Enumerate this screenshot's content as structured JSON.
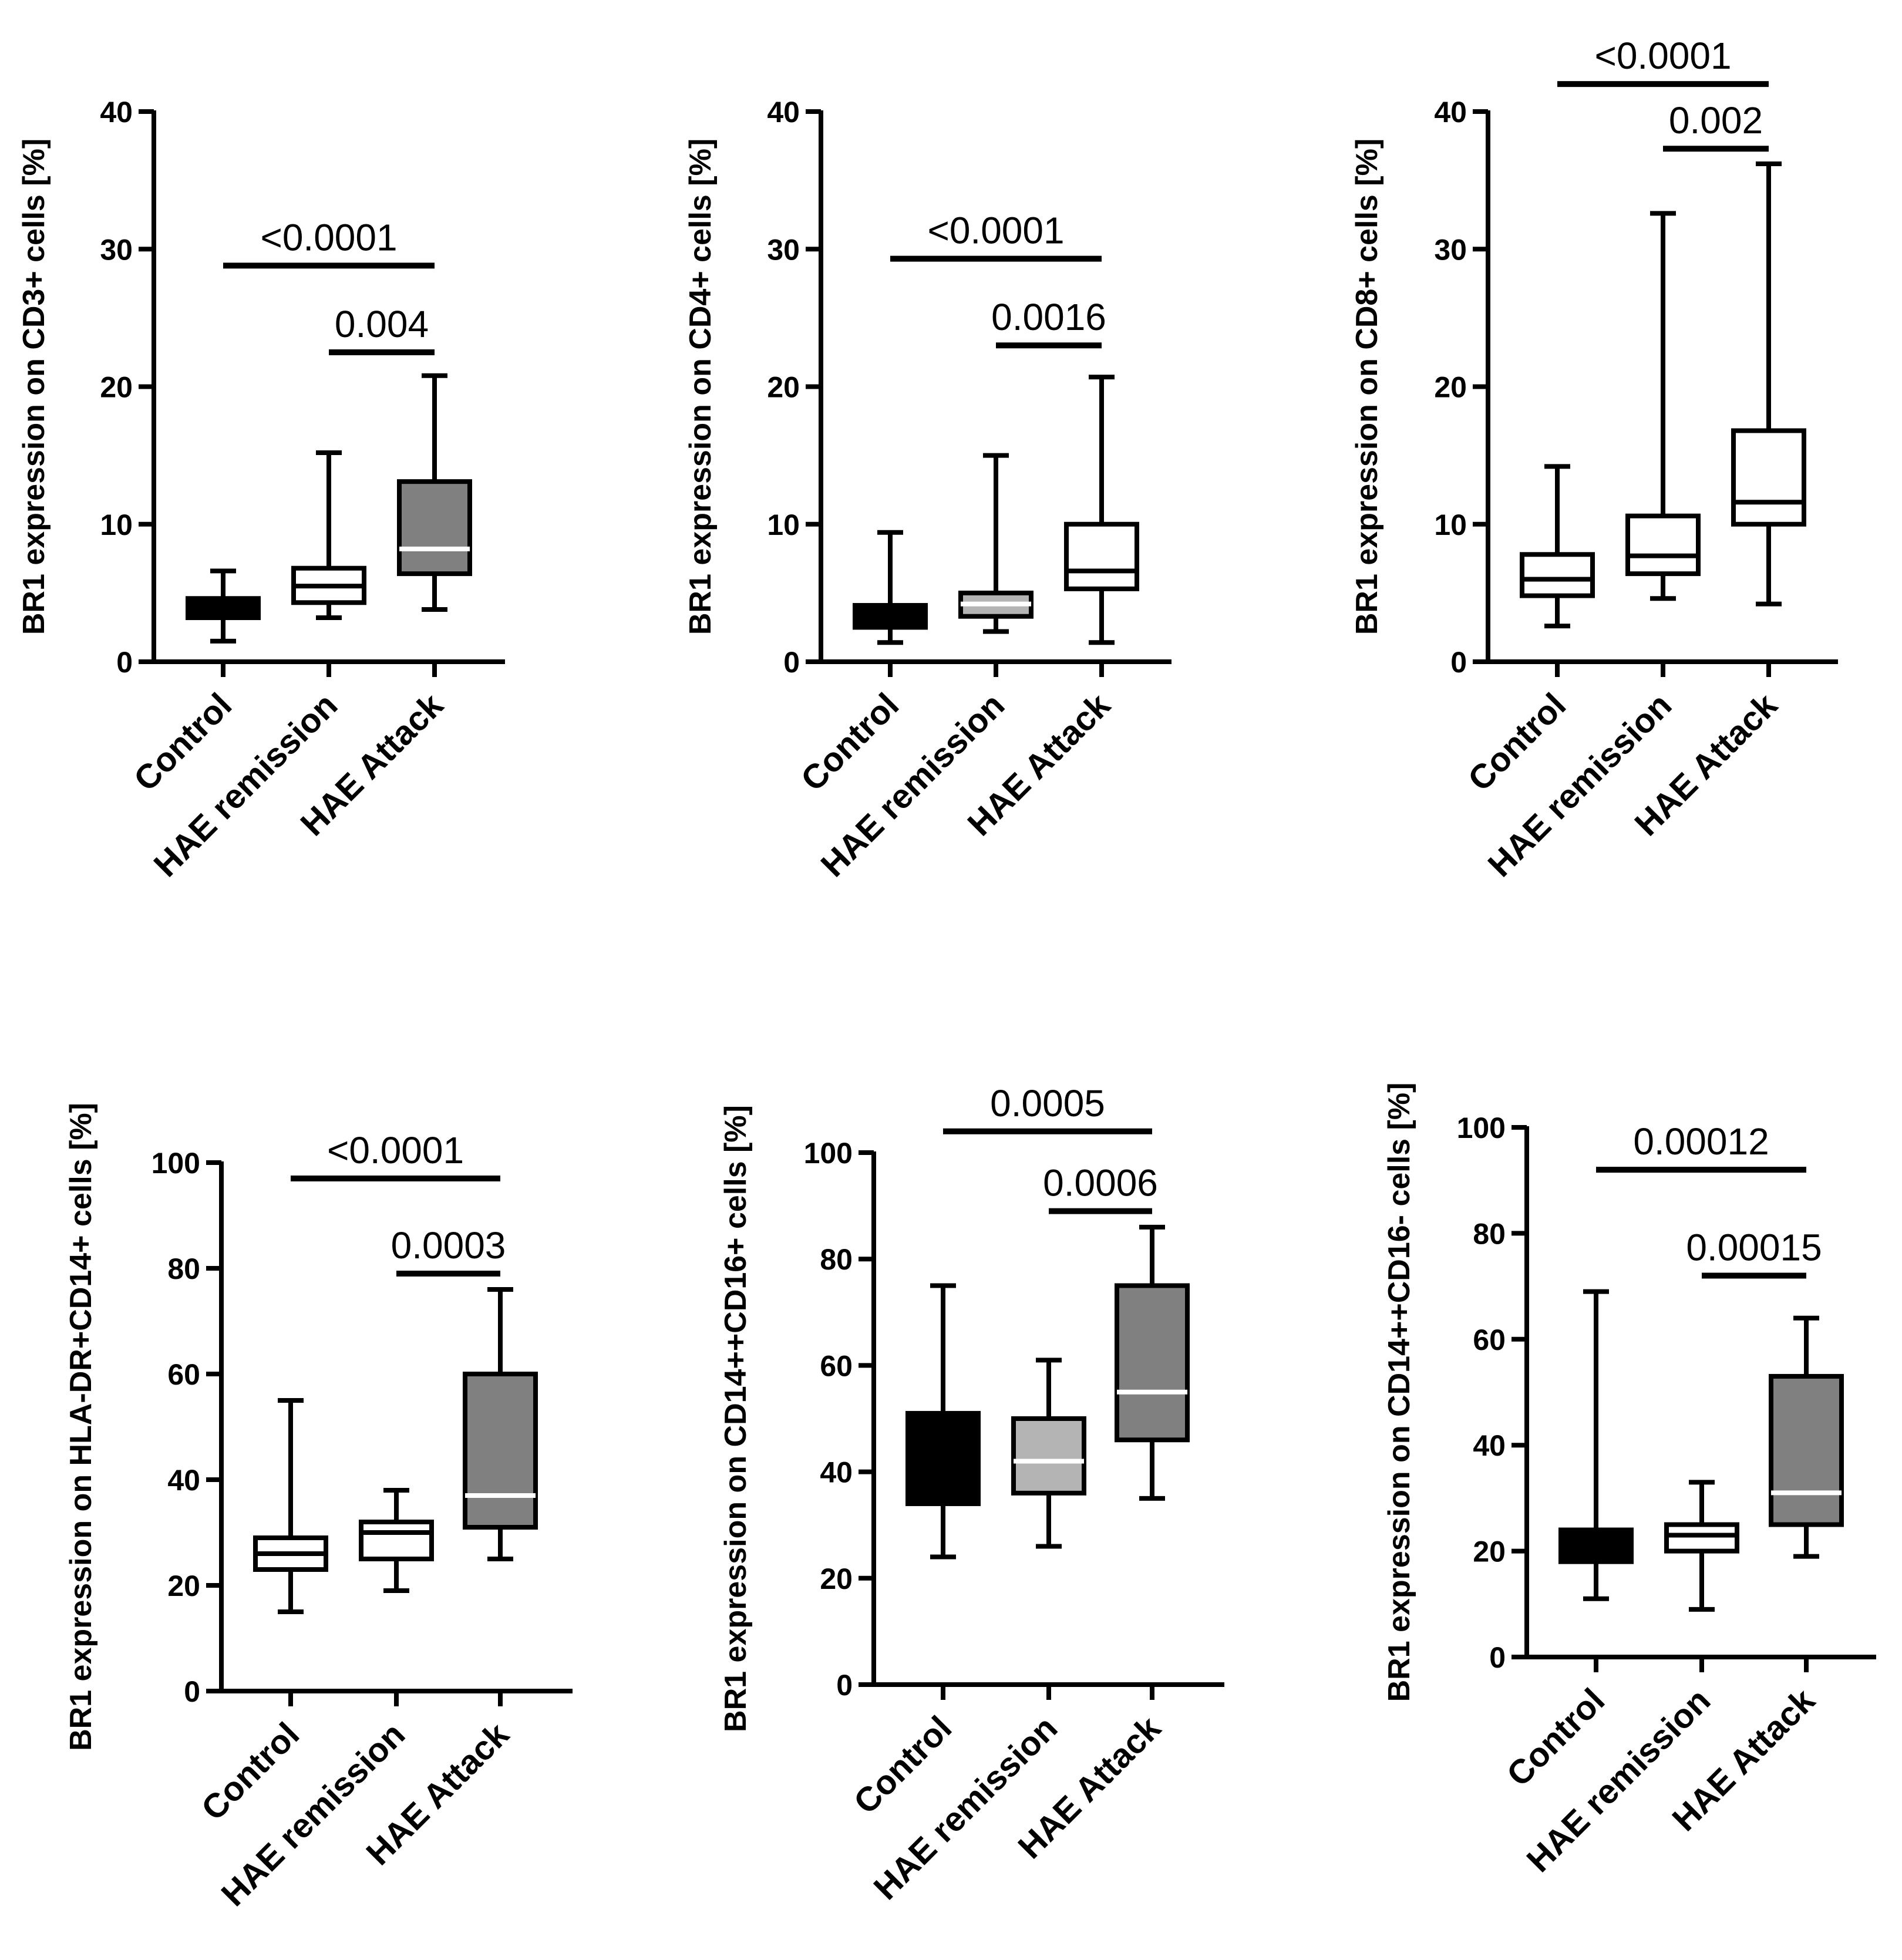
{
  "figure": {
    "colors": {
      "black": "#000000",
      "dark_grey": "#808080",
      "light_grey": "#b4b4b4",
      "white": "#ffffff"
    },
    "shared_categories": [
      "Control",
      "HAE remission",
      "HAE Attack"
    ]
  },
  "chart_data": [
    {
      "type": "boxplot",
      "ylabel": "BR1 expression on CD3+ cells [%]",
      "ylim": [
        0,
        40
      ],
      "yticks": [
        "0",
        "10",
        "20",
        "30",
        "40"
      ],
      "categories": [
        "Control",
        "HAE remission",
        "HAE Attack"
      ],
      "boxes": [
        {
          "min": 1.5,
          "q1": 3.2,
          "median": 3.8,
          "q3": 4.6,
          "max": 6.6,
          "fill": "black"
        },
        {
          "min": 3.2,
          "q1": 4.3,
          "median": 5.5,
          "q3": 6.8,
          "max": 15.2,
          "fill": "white"
        },
        {
          "min": 3.8,
          "q1": 6.4,
          "median": 8.2,
          "q3": 13.1,
          "max": 20.8,
          "fill": "dark_grey"
        }
      ],
      "comparisons": [
        {
          "from": 0,
          "to": 2,
          "label": "<0.0001",
          "y": 28.8
        },
        {
          "from": 1,
          "to": 2,
          "label": "0.004",
          "y": 22.5
        }
      ]
    },
    {
      "type": "boxplot",
      "ylabel": "BR1 expression on CD4+ cells [%]",
      "ylim": [
        0,
        40
      ],
      "yticks": [
        "0",
        "10",
        "20",
        "30",
        "40"
      ],
      "categories": [
        "Control",
        "HAE remission",
        "HAE Attack"
      ],
      "boxes": [
        {
          "min": 1.4,
          "q1": 2.5,
          "median": 3.3,
          "q3": 4.1,
          "max": 9.4,
          "fill": "black"
        },
        {
          "min": 2.2,
          "q1": 3.3,
          "median": 4.2,
          "q3": 5.0,
          "max": 15.0,
          "fill": "light_grey"
        },
        {
          "min": 1.4,
          "q1": 5.3,
          "median": 6.6,
          "q3": 10.0,
          "max": 20.7,
          "fill": "white"
        }
      ],
      "comparisons": [
        {
          "from": 0,
          "to": 2,
          "label": "<0.0001",
          "y": 29.3
        },
        {
          "from": 1,
          "to": 2,
          "label": "0.0016",
          "y": 23.0
        }
      ]
    },
    {
      "type": "boxplot",
      "ylabel": "BR1 expression on CD8+ cells [%]",
      "ylim": [
        0,
        40
      ],
      "yticks": [
        "0",
        "10",
        "20",
        "30",
        "40"
      ],
      "categories": [
        "Control",
        "HAE remission",
        "HAE Attack"
      ],
      "boxes": [
        {
          "min": 2.6,
          "q1": 4.8,
          "median": 6.0,
          "q3": 7.8,
          "max": 14.2,
          "fill": "white"
        },
        {
          "min": 4.6,
          "q1": 6.4,
          "median": 7.7,
          "q3": 10.6,
          "max": 32.6,
          "fill": "white"
        },
        {
          "min": 4.2,
          "q1": 10.0,
          "median": 11.6,
          "q3": 16.8,
          "max": 36.2,
          "fill": "white"
        }
      ],
      "comparisons": [
        {
          "from": 0,
          "to": 2,
          "label": "<0.0001",
          "y": 42.0
        },
        {
          "from": 1,
          "to": 2,
          "label": "0.002",
          "y": 37.3
        }
      ]
    },
    {
      "type": "boxplot",
      "ylabel": "BR1 expression on HLA-DR+CD14+ cells [%]",
      "ylim": [
        0,
        100
      ],
      "yticks": [
        "0",
        "20",
        "40",
        "60",
        "80",
        "100"
      ],
      "categories": [
        "Control",
        "HAE remission",
        "HAE Attack"
      ],
      "boxes": [
        {
          "min": 15,
          "q1": 23,
          "median": 26,
          "q3": 29,
          "max": 55,
          "fill": "white"
        },
        {
          "min": 19,
          "q1": 25,
          "median": 30,
          "q3": 32,
          "max": 38,
          "fill": "white"
        },
        {
          "min": 25,
          "q1": 31,
          "median": 37,
          "q3": 60,
          "max": 76,
          "fill": "dark_grey"
        }
      ],
      "comparisons": [
        {
          "from": 0,
          "to": 2,
          "label": "<0.0001",
          "y": 97
        },
        {
          "from": 1,
          "to": 2,
          "label": "0.0003",
          "y": 79
        }
      ]
    },
    {
      "type": "boxplot",
      "ylabel": "BR1 expression on CD14++CD16+ cells [%]",
      "ylim": [
        0,
        100
      ],
      "yticks": [
        "0",
        "20",
        "40",
        "60",
        "80",
        "100"
      ],
      "categories": [
        "Control",
        "HAE remission",
        "HAE Attack"
      ],
      "boxes": [
        {
          "min": 24,
          "q1": 34,
          "median": 37,
          "q3": 51,
          "max": 75,
          "fill": "black"
        },
        {
          "min": 26,
          "q1": 36,
          "median": 42,
          "q3": 50,
          "max": 61,
          "fill": "light_grey"
        },
        {
          "min": 35,
          "q1": 46,
          "median": 55,
          "q3": 75,
          "max": 86,
          "fill": "dark_grey"
        }
      ],
      "comparisons": [
        {
          "from": 0,
          "to": 2,
          "label": "0.0005",
          "y": 104
        },
        {
          "from": 1,
          "to": 2,
          "label": "0.0006",
          "y": 89
        }
      ]
    },
    {
      "type": "boxplot",
      "ylabel": "BR1 expression on CD14++CD16- cells [%]",
      "ylim": [
        0,
        100
      ],
      "yticks": [
        "0",
        "20",
        "40",
        "60",
        "80",
        "100"
      ],
      "categories": [
        "Control",
        "HAE remission",
        "HAE Attack"
      ],
      "boxes": [
        {
          "min": 11,
          "q1": 18,
          "median": 22,
          "q3": 24,
          "max": 69,
          "fill": "black"
        },
        {
          "min": 9,
          "q1": 20,
          "median": 23,
          "q3": 25,
          "max": 33,
          "fill": "white"
        },
        {
          "min": 19,
          "q1": 25,
          "median": 31,
          "q3": 53,
          "max": 64,
          "fill": "dark_grey"
        }
      ],
      "comparisons": [
        {
          "from": 0,
          "to": 2,
          "label": "0.00012",
          "y": 92
        },
        {
          "from": 1,
          "to": 2,
          "label": "0.00015",
          "y": 72
        }
      ]
    }
  ]
}
